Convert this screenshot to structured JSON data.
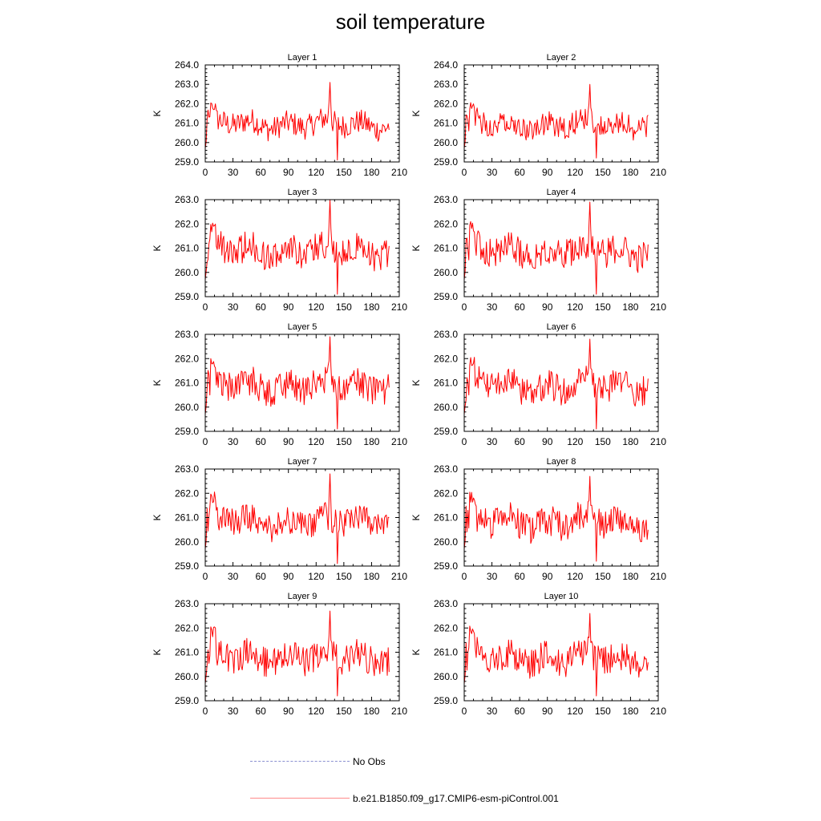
{
  "page_title": "soil temperature",
  "legend": {
    "no_obs": "No Obs",
    "run": "b.e21.B1850.f09_g17.CMIP6-esm-piControl.001",
    "run_color": "#ff0000",
    "no_obs_color": "#8a8fd0"
  },
  "chart_data": [
    {
      "type": "line",
      "title": "Layer 1",
      "ylabel": "K",
      "xlim": [
        0,
        210
      ],
      "ylim": [
        259,
        264
      ],
      "xticks": [
        0,
        30,
        60,
        90,
        120,
        150,
        180,
        210
      ],
      "ytick_labels": [
        "259.0",
        "260.0",
        "261.0",
        "262.0",
        "263.0",
        "264.0"
      ],
      "series": [
        {
          "name": "b.e21.B1850.f09_g17.CMIP6-esm-piControl.001",
          "color": "#ff0000",
          "peak_x": 135,
          "peak_y": 263.1,
          "min_x": 143,
          "min_y": 259.1
        }
      ]
    },
    {
      "type": "line",
      "title": "Layer 2",
      "ylabel": "K",
      "xlim": [
        0,
        210
      ],
      "ylim": [
        259,
        264
      ],
      "xticks": [
        0,
        30,
        60,
        90,
        120,
        150,
        180,
        210
      ],
      "ytick_labels": [
        "259.0",
        "260.0",
        "261.0",
        "262.0",
        "263.0",
        "264.0"
      ],
      "series": [
        {
          "name": "b.e21.B1850.f09_g17.CMIP6-esm-piControl.001",
          "color": "#ff0000",
          "peak_x": 136,
          "peak_y": 263.0,
          "min_x": 143,
          "min_y": 259.2
        }
      ]
    },
    {
      "type": "line",
      "title": "Layer 3",
      "ylabel": "K",
      "xlim": [
        0,
        210
      ],
      "ylim": [
        259,
        263
      ],
      "xticks": [
        0,
        30,
        60,
        90,
        120,
        150,
        180,
        210
      ],
      "ytick_labels": [
        "259.0",
        "260.0",
        "261.0",
        "262.0",
        "263.0"
      ],
      "series": [
        {
          "name": "b.e21.B1850.f09_g17.CMIP6-esm-piControl.001",
          "color": "#ff0000",
          "peak_x": 135,
          "peak_y": 263.0,
          "min_x": 143,
          "min_y": 259.1
        }
      ]
    },
    {
      "type": "line",
      "title": "Layer 4",
      "ylabel": "K",
      "xlim": [
        0,
        210
      ],
      "ylim": [
        259,
        263
      ],
      "xticks": [
        0,
        30,
        60,
        90,
        120,
        150,
        180,
        210
      ],
      "ytick_labels": [
        "259.0",
        "260.0",
        "261.0",
        "262.0",
        "263.0"
      ],
      "series": [
        {
          "name": "b.e21.B1850.f09_g17.CMIP6-esm-piControl.001",
          "color": "#ff0000",
          "peak_x": 136,
          "peak_y": 262.9,
          "min_x": 143,
          "min_y": 259.1
        }
      ]
    },
    {
      "type": "line",
      "title": "Layer 5",
      "ylabel": "K",
      "xlim": [
        0,
        210
      ],
      "ylim": [
        259,
        263
      ],
      "xticks": [
        0,
        30,
        60,
        90,
        120,
        150,
        180,
        210
      ],
      "ytick_labels": [
        "259.0",
        "260.0",
        "261.0",
        "262.0",
        "263.0"
      ],
      "series": [
        {
          "name": "b.e21.B1850.f09_g17.CMIP6-esm-piControl.001",
          "color": "#ff0000",
          "peak_x": 135,
          "peak_y": 262.9,
          "min_x": 143,
          "min_y": 259.1
        }
      ]
    },
    {
      "type": "line",
      "title": "Layer 6",
      "ylabel": "K",
      "xlim": [
        0,
        210
      ],
      "ylim": [
        259,
        263
      ],
      "xticks": [
        0,
        30,
        60,
        90,
        120,
        150,
        180,
        210
      ],
      "ytick_labels": [
        "259.0",
        "260.0",
        "261.0",
        "262.0",
        "263.0"
      ],
      "series": [
        {
          "name": "b.e21.B1850.f09_g17.CMIP6-esm-piControl.001",
          "color": "#ff0000",
          "peak_x": 136,
          "peak_y": 262.8,
          "min_x": 143,
          "min_y": 259.1
        }
      ]
    },
    {
      "type": "line",
      "title": "Layer 7",
      "ylabel": "K",
      "xlim": [
        0,
        210
      ],
      "ylim": [
        259,
        263
      ],
      "xticks": [
        0,
        30,
        60,
        90,
        120,
        150,
        180,
        210
      ],
      "ytick_labels": [
        "259.0",
        "260.0",
        "261.0",
        "262.0",
        "263.0"
      ],
      "series": [
        {
          "name": "b.e21.B1850.f09_g17.CMIP6-esm-piControl.001",
          "color": "#ff0000",
          "peak_x": 135,
          "peak_y": 262.8,
          "min_x": 143,
          "min_y": 259.1
        }
      ]
    },
    {
      "type": "line",
      "title": "Layer 8",
      "ylabel": "K",
      "xlim": [
        0,
        210
      ],
      "ylim": [
        259,
        263
      ],
      "xticks": [
        0,
        30,
        60,
        90,
        120,
        150,
        180,
        210
      ],
      "ytick_labels": [
        "259.0",
        "260.0",
        "261.0",
        "262.0",
        "263.0"
      ],
      "series": [
        {
          "name": "b.e21.B1850.f09_g17.CMIP6-esm-piControl.001",
          "color": "#ff0000",
          "peak_x": 136,
          "peak_y": 262.7,
          "min_x": 143,
          "min_y": 259.2
        }
      ]
    },
    {
      "type": "line",
      "title": "Layer 9",
      "ylabel": "K",
      "xlim": [
        0,
        210
      ],
      "ylim": [
        259,
        263
      ],
      "xticks": [
        0,
        30,
        60,
        90,
        120,
        150,
        180,
        210
      ],
      "ytick_labels": [
        "259.0",
        "260.0",
        "261.0",
        "262.0",
        "263.0"
      ],
      "series": [
        {
          "name": "b.e21.B1850.f09_g17.CMIP6-esm-piControl.001",
          "color": "#ff0000",
          "peak_x": 135,
          "peak_y": 262.7,
          "min_x": 143,
          "min_y": 259.2
        }
      ]
    },
    {
      "type": "line",
      "title": "Layer 10",
      "ylabel": "K",
      "xlim": [
        0,
        210
      ],
      "ylim": [
        259,
        263
      ],
      "xticks": [
        0,
        30,
        60,
        90,
        120,
        150,
        180,
        210
      ],
      "ytick_labels": [
        "259.0",
        "260.0",
        "261.0",
        "262.0",
        "263.0"
      ],
      "series": [
        {
          "name": "b.e21.B1850.f09_g17.CMIP6-esm-piControl.001",
          "color": "#ff0000",
          "peak_x": 136,
          "peak_y": 262.6,
          "min_x": 143,
          "min_y": 259.2
        }
      ]
    }
  ]
}
